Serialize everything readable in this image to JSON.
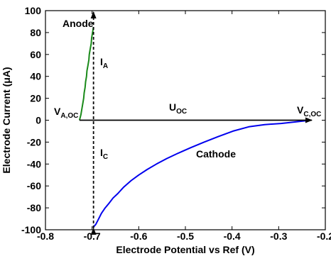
{
  "chart_data": {
    "type": "line",
    "title": "",
    "xlabel": "Electrode Potential vs Ref (V)",
    "ylabel": "Electrode Current (μA)",
    "xlim": [
      -0.8,
      -0.2
    ],
    "ylim": [
      -100,
      100
    ],
    "x_ticks": [
      -0.8,
      -0.7,
      -0.6,
      -0.5,
      -0.4,
      -0.3,
      -0.2
    ],
    "x_tick_labels": [
      "-0.8",
      "-0.7",
      "-0.6",
      "-0.5",
      "-0.4",
      "-0.3",
      "-0.2"
    ],
    "y_ticks": [
      -100,
      -80,
      -60,
      -40,
      -20,
      0,
      20,
      40,
      60,
      80,
      100
    ],
    "y_tick_labels": [
      "-100",
      "-80",
      "-60",
      "-40",
      "-20",
      "0",
      "20",
      "40",
      "60",
      "80",
      "100"
    ],
    "grid": false,
    "series": [
      {
        "name": "Anode",
        "color": "#1a8a1a",
        "x": [
          -0.727,
          -0.724,
          -0.722,
          -0.72,
          -0.718,
          -0.717,
          -0.715,
          -0.714,
          -0.712,
          -0.711,
          -0.709,
          -0.707,
          -0.706,
          -0.704,
          -0.702,
          -0.701,
          -0.699,
          -0.697
        ],
        "y": [
          0,
          5,
          10,
          15,
          20,
          25,
          30,
          35,
          40,
          45,
          50,
          55,
          60,
          65,
          70,
          75,
          80,
          85
        ]
      },
      {
        "name": "Cathode",
        "color": "#0000ee",
        "x": [
          -0.698,
          -0.692,
          -0.686,
          -0.68,
          -0.672,
          -0.664,
          -0.655,
          -0.645,
          -0.632,
          -0.616,
          -0.6,
          -0.582,
          -0.562,
          -0.54,
          -0.515,
          -0.488,
          -0.46,
          -0.43,
          -0.398,
          -0.364,
          -0.33,
          -0.295,
          -0.262,
          -0.232
        ],
        "y": [
          -98,
          -95,
          -90,
          -85,
          -80,
          -76,
          -71,
          -67,
          -61,
          -55,
          -50,
          -45,
          -40,
          -35,
          -30,
          -25,
          -20,
          -15,
          -10,
          -6,
          -4,
          -3,
          -1.5,
          0
        ]
      }
    ],
    "annotations": {
      "anode": "Anode",
      "cathode": "Cathode",
      "i_a": "I",
      "i_a_sub": "A",
      "i_c": "I",
      "i_c_sub": "C",
      "u_oc": "U",
      "u_oc_sub": "OC",
      "v_a": "V",
      "v_a_sub": "A,OC",
      "v_c": "V",
      "v_c_sub": "C,OC"
    },
    "current_arrow": {
      "x": -0.697,
      "y_from": -100,
      "y_to": 100
    },
    "voltage_arrow": {
      "y": 0,
      "x_from": -0.727,
      "x_to": -0.232
    }
  }
}
